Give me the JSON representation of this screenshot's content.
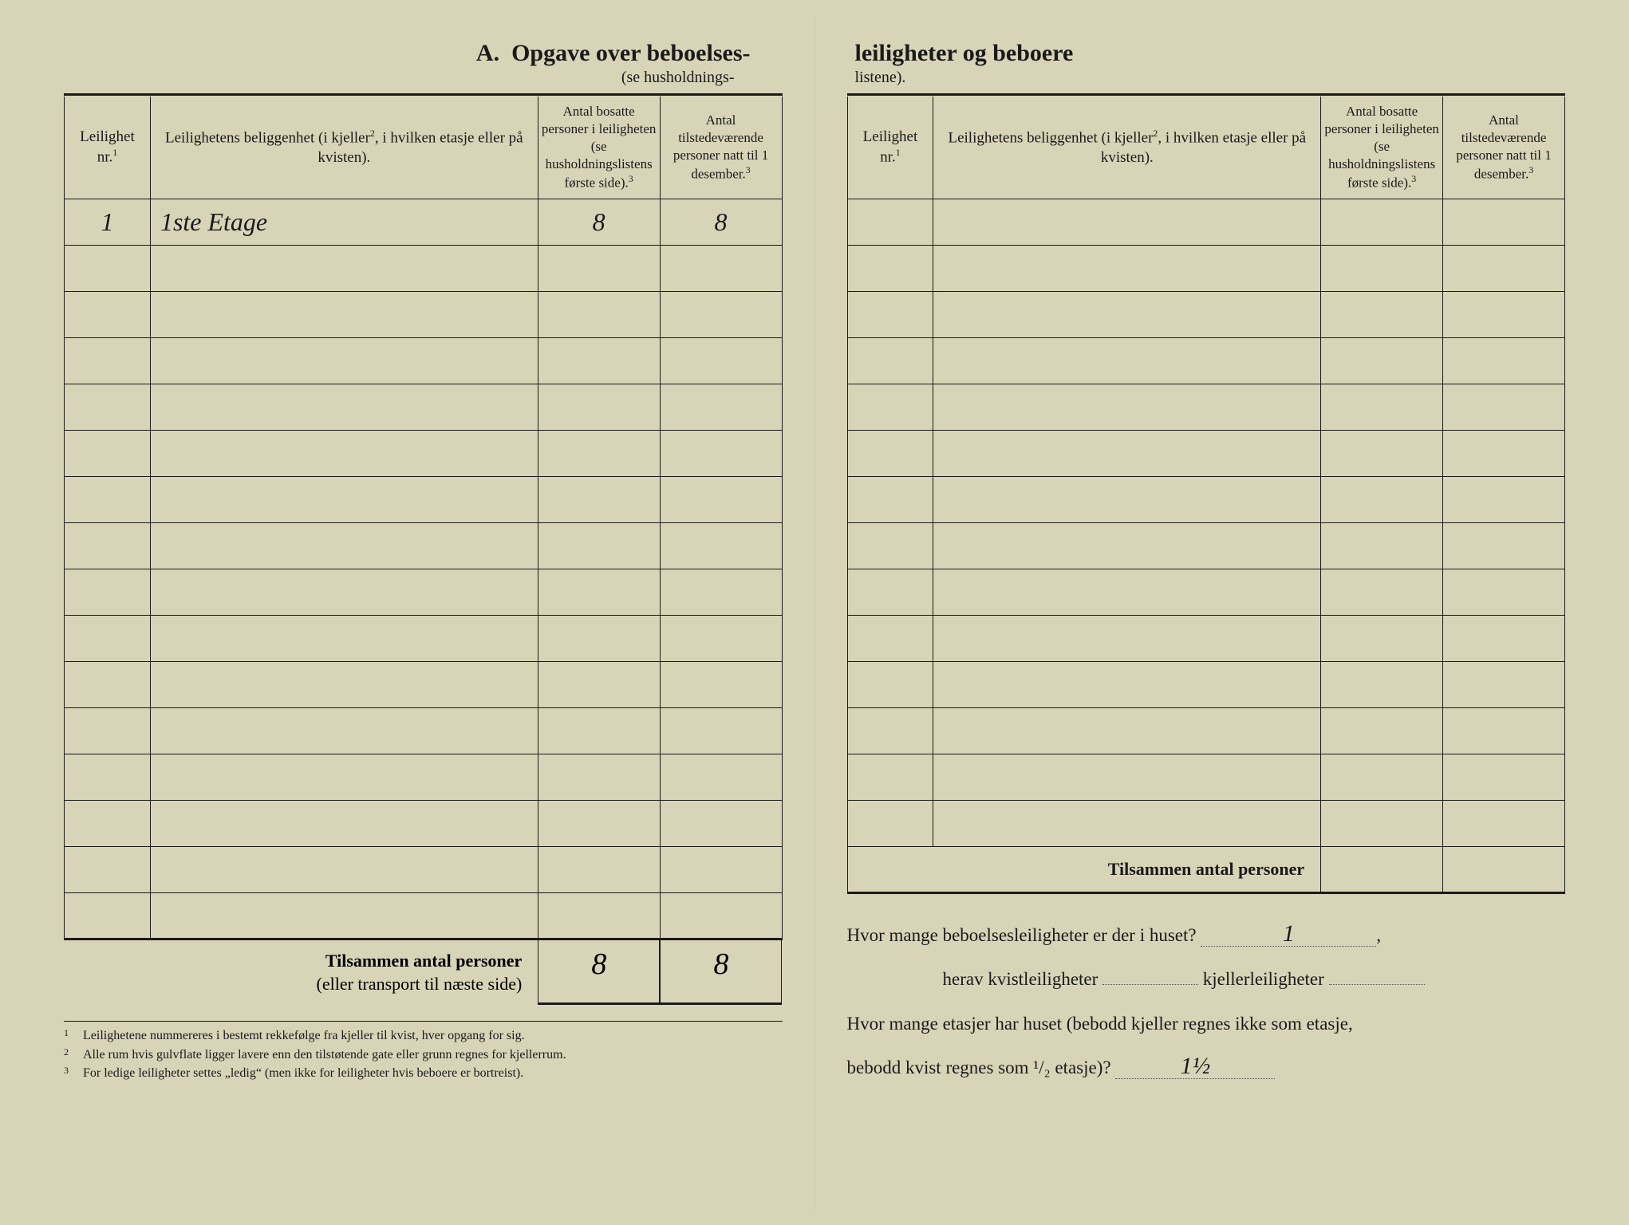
{
  "document": {
    "background_color": "#d8d4b8",
    "text_color": "#1a1a1a",
    "handwriting_color": "#2a2a2a"
  },
  "left": {
    "title_prefix": "A.",
    "title_main": "Opgave over beboelses-",
    "title_sub": "(se husholdnings-",
    "headers": {
      "col1": "Leilighet nr.",
      "col1_sup": "1",
      "col2": "Leilighetens beliggenhet (i kjeller",
      "col2_sup": "2",
      "col2_after": ", i hvilken etasje eller på kvisten).",
      "col3": "Antal bosatte personer i leiligheten (se husholdningslistens første side).",
      "col3_sup": "3",
      "col4": "Antal tilstedeværende personer natt til 1 desember.",
      "col4_sup": "3"
    },
    "rows": [
      {
        "nr": "1",
        "loc": "1ste Etage",
        "bosatte": "8",
        "tilstede": "8"
      },
      {
        "nr": "",
        "loc": "",
        "bosatte": "",
        "tilstede": ""
      },
      {
        "nr": "",
        "loc": "",
        "bosatte": "",
        "tilstede": ""
      },
      {
        "nr": "",
        "loc": "",
        "bosatte": "",
        "tilstede": ""
      },
      {
        "nr": "",
        "loc": "",
        "bosatte": "",
        "tilstede": ""
      },
      {
        "nr": "",
        "loc": "",
        "bosatte": "",
        "tilstede": ""
      },
      {
        "nr": "",
        "loc": "",
        "bosatte": "",
        "tilstede": ""
      },
      {
        "nr": "",
        "loc": "",
        "bosatte": "",
        "tilstede": ""
      },
      {
        "nr": "",
        "loc": "",
        "bosatte": "",
        "tilstede": ""
      },
      {
        "nr": "",
        "loc": "",
        "bosatte": "",
        "tilstede": ""
      },
      {
        "nr": "",
        "loc": "",
        "bosatte": "",
        "tilstede": ""
      },
      {
        "nr": "",
        "loc": "",
        "bosatte": "",
        "tilstede": ""
      },
      {
        "nr": "",
        "loc": "",
        "bosatte": "",
        "tilstede": ""
      },
      {
        "nr": "",
        "loc": "",
        "bosatte": "",
        "tilstede": ""
      },
      {
        "nr": "",
        "loc": "",
        "bosatte": "",
        "tilstede": ""
      },
      {
        "nr": "",
        "loc": "",
        "bosatte": "",
        "tilstede": ""
      }
    ],
    "sum_label_bold": "Tilsammen antal personer",
    "sum_label_sub": "(eller transport til næste side)",
    "sum_bosatte": "8",
    "sum_tilstede": "8",
    "footnotes": [
      "Leilighetene nummereres i bestemt rekkefølge fra kjeller til kvist, hver opgang for sig.",
      "Alle rum hvis gulvflate ligger lavere enn den tilstøtende gate eller grunn regnes for kjellerrum.",
      "For ledige leiligheter settes „ledig“ (men ikke for leiligheter hvis beboere er bortreist)."
    ]
  },
  "right": {
    "title_main": "leiligheter og beboere",
    "title_sub": "listene).",
    "headers": {
      "col1": "Leilighet nr.",
      "col1_sup": "1",
      "col2": "Leilighetens beliggenhet (i kjeller",
      "col2_sup": "2",
      "col2_after": ", i hvilken etasje eller på kvisten).",
      "col3": "Antal bosatte personer i leiligheten (se husholdningslistens første side).",
      "col3_sup": "3",
      "col4": "Antal tilstedeværende personer natt til 1 desember.",
      "col4_sup": "3"
    },
    "rows": [
      {
        "nr": "",
        "loc": "",
        "bosatte": "",
        "tilstede": ""
      },
      {
        "nr": "",
        "loc": "",
        "bosatte": "",
        "tilstede": ""
      },
      {
        "nr": "",
        "loc": "",
        "bosatte": "",
        "tilstede": ""
      },
      {
        "nr": "",
        "loc": "",
        "bosatte": "",
        "tilstede": ""
      },
      {
        "nr": "",
        "loc": "",
        "bosatte": "",
        "tilstede": ""
      },
      {
        "nr": "",
        "loc": "",
        "bosatte": "",
        "tilstede": ""
      },
      {
        "nr": "",
        "loc": "",
        "bosatte": "",
        "tilstede": ""
      },
      {
        "nr": "",
        "loc": "",
        "bosatte": "",
        "tilstede": ""
      },
      {
        "nr": "",
        "loc": "",
        "bosatte": "",
        "tilstede": ""
      },
      {
        "nr": "",
        "loc": "",
        "bosatte": "",
        "tilstede": ""
      },
      {
        "nr": "",
        "loc": "",
        "bosatte": "",
        "tilstede": ""
      },
      {
        "nr": "",
        "loc": "",
        "bosatte": "",
        "tilstede": ""
      },
      {
        "nr": "",
        "loc": "",
        "bosatte": "",
        "tilstede": ""
      },
      {
        "nr": "",
        "loc": "",
        "bosatte": "",
        "tilstede": ""
      }
    ],
    "sum_label": "Tilsammen antal personer",
    "sum_bosatte": "",
    "sum_tilstede": "",
    "q1_text": "Hvor mange beboelsesleiligheter er der i huset?",
    "q1_answer": "1",
    "q2_herav": "herav kvistleiligheter",
    "q2_herav_answer": "",
    "q2_kjeller": "kjellerleiligheter",
    "q2_kjeller_answer": "",
    "q3_text_a": "Hvor mange etasjer har huset (bebodd kjeller regnes ikke som etasje,",
    "q3_text_b": "bebodd kvist regnes som ¹/₂ etasje)?",
    "q3_answer": "1½"
  }
}
